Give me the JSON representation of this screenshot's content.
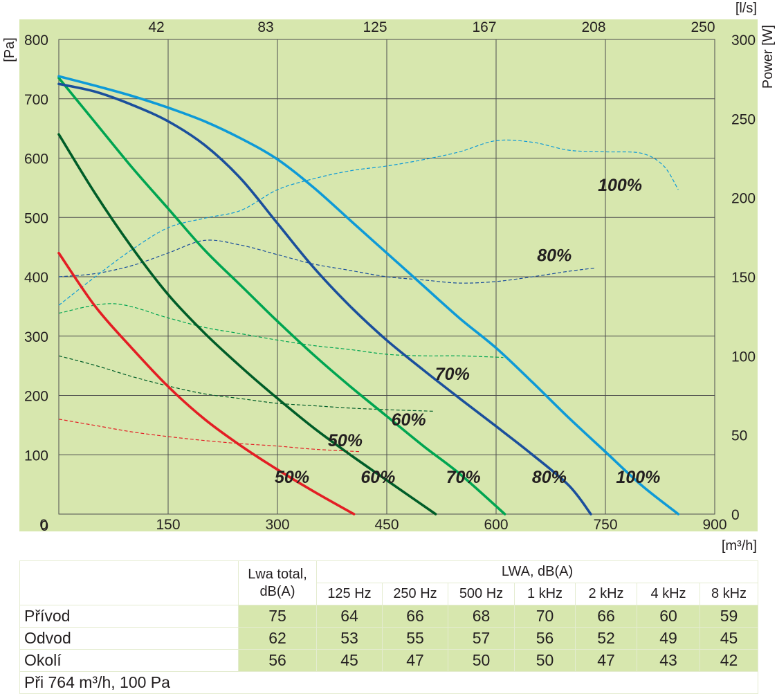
{
  "chart_data": {
    "type": "line",
    "title": "",
    "background": "#d7e7ae",
    "x_axis": {
      "label": "[m³/h]",
      "range": [
        0,
        900
      ],
      "ticks": [
        0,
        150,
        300,
        450,
        600,
        750,
        900
      ],
      "tick_labels": [
        "0",
        "150",
        "300",
        "450",
        "600",
        "750",
        "900"
      ]
    },
    "x2_axis": {
      "label": "[l/s]",
      "tick_labels": [
        "42",
        "83",
        "125",
        "167",
        "208",
        "250"
      ],
      "tick_positions_m3h": [
        150,
        300,
        450,
        600,
        750,
        900
      ]
    },
    "y_axis": {
      "label": "[Pa]",
      "range": [
        0,
        800
      ],
      "ticks": [
        0,
        100,
        200,
        300,
        400,
        500,
        600,
        700,
        800
      ],
      "tick_labels": [
        "0",
        "100",
        "200",
        "300",
        "400",
        "500",
        "600",
        "700",
        "800"
      ]
    },
    "y2_axis": {
      "label": "Power [W]",
      "range": [
        0,
        300
      ],
      "ticks": [
        0,
        50,
        100,
        150,
        200,
        250,
        300
      ],
      "tick_labels": [
        "0",
        "50",
        "100",
        "150",
        "200",
        "250",
        "300"
      ]
    },
    "pressure_series": [
      {
        "name": "50%",
        "color": "#e31e24",
        "x": [
          0,
          50,
          100,
          150,
          200,
          250,
          300,
          350,
          405
        ],
        "y": [
          440,
          350,
          280,
          215,
          160,
          115,
          75,
          38,
          0
        ]
      },
      {
        "name": "60%",
        "color": "#005d28",
        "x": [
          0,
          50,
          100,
          150,
          200,
          250,
          300,
          350,
          400,
          450,
          517
        ],
        "y": [
          640,
          540,
          450,
          370,
          305,
          248,
          195,
          145,
          100,
          57,
          0
        ]
      },
      {
        "name": "70%",
        "color": "#00a551",
        "x": [
          0,
          50,
          100,
          150,
          200,
          250,
          300,
          350,
          400,
          450,
          500,
          550,
          612
        ],
        "y": [
          735,
          660,
          585,
          515,
          445,
          385,
          325,
          268,
          215,
          165,
          115,
          68,
          0
        ]
      },
      {
        "name": "80%",
        "color": "#1b4f9c",
        "x": [
          0,
          50,
          100,
          150,
          200,
          250,
          300,
          350,
          400,
          450,
          500,
          550,
          600,
          650,
          700,
          730
        ],
        "y": [
          725,
          712,
          690,
          662,
          622,
          565,
          490,
          415,
          350,
          293,
          243,
          195,
          148,
          100,
          48,
          0
        ]
      },
      {
        "name": "100%",
        "color": "#0e9ad7",
        "x": [
          0,
          50,
          100,
          150,
          200,
          250,
          300,
          350,
          400,
          450,
          500,
          550,
          600,
          650,
          700,
          750,
          800,
          850
        ],
        "y": [
          738,
          722,
          705,
          685,
          662,
          633,
          598,
          550,
          495,
          440,
          385,
          330,
          280,
          222,
          162,
          105,
          48,
          0
        ]
      }
    ],
    "power_series": [
      {
        "name": "50%",
        "color": "#e31e24",
        "x": [
          0,
          50,
          100,
          150,
          200,
          250,
          300,
          350,
          412
        ],
        "y": [
          60,
          56,
          52,
          49,
          46.5,
          44.5,
          43,
          41,
          39.5
        ]
      },
      {
        "name": "60%",
        "color": "#005d28",
        "x": [
          0,
          50,
          100,
          150,
          200,
          250,
          300,
          350,
          400,
          450,
          515
        ],
        "y": [
          100,
          94,
          87,
          81,
          76,
          73,
          70,
          68.5,
          67,
          66,
          65
        ]
      },
      {
        "name": "70%",
        "color": "#00a551",
        "x": [
          0,
          75,
          150,
          200,
          250,
          300,
          350,
          400,
          450,
          500,
          550,
          610
        ],
        "y": [
          127,
          133,
          124,
          118,
          114,
          110,
          106.5,
          104,
          101,
          100,
          100,
          99
        ]
      },
      {
        "name": "80%",
        "color": "#1b4f9c",
        "x": [
          0,
          50,
          100,
          150,
          200,
          250,
          300,
          350,
          400,
          450,
          500,
          550,
          600,
          650,
          700,
          735
        ],
        "y": [
          150,
          152,
          157,
          165,
          173,
          170,
          164,
          158,
          154,
          150,
          148,
          146,
          147,
          150,
          153.5,
          155.5
        ]
      },
      {
        "name": "100%",
        "color": "#0e9ad7",
        "x": [
          0,
          50,
          100,
          150,
          200,
          250,
          300,
          350,
          400,
          450,
          500,
          550,
          600,
          650,
          700,
          750,
          800,
          830,
          850
        ],
        "y": [
          132,
          150,
          167,
          181,
          187,
          192,
          205,
          212,
          217,
          220,
          224,
          229,
          236,
          235,
          230,
          229,
          228,
          220,
          205
        ]
      }
    ],
    "curve_labels": [
      {
        "text": "50%",
        "x": 320,
        "y": 63
      },
      {
        "text": "60%",
        "x": 438,
        "y": 63
      },
      {
        "text": "70%",
        "x": 555,
        "y": 63
      },
      {
        "text": "80%",
        "x": 673,
        "y": 63
      },
      {
        "text": "100%",
        "x": 795,
        "y": 63
      },
      {
        "text": "50%",
        "x": 393,
        "y": 125
      },
      {
        "text": "60%",
        "x": 480,
        "y": 160
      },
      {
        "text": "70%",
        "x": 540,
        "y": 237
      },
      {
        "text": "80%",
        "x": 680,
        "y": 437
      },
      {
        "text": "100%",
        "x": 770,
        "y": 555
      }
    ],
    "legend": "none"
  },
  "noise_table": {
    "header_total_line1": "Lwa total,",
    "header_total_line2": "dB(A)",
    "header_lwa": "LWA, dB(A)",
    "frequencies": [
      "125 Hz",
      "250 Hz",
      "500 Hz",
      "1 kHz",
      "2 kHz",
      "4 kHz",
      "8 kHz"
    ],
    "rows": [
      {
        "label": "Přívod",
        "total": "75",
        "values": [
          "64",
          "66",
          "68",
          "70",
          "66",
          "60",
          "59"
        ]
      },
      {
        "label": "Odvod",
        "total": "62",
        "values": [
          "53",
          "55",
          "57",
          "56",
          "52",
          "49",
          "45"
        ]
      },
      {
        "label": "Okolí",
        "total": "56",
        "values": [
          "45",
          "47",
          "50",
          "50",
          "47",
          "43",
          "42"
        ]
      }
    ],
    "footnote": "Při 764 m³/h, 100 Pa"
  }
}
